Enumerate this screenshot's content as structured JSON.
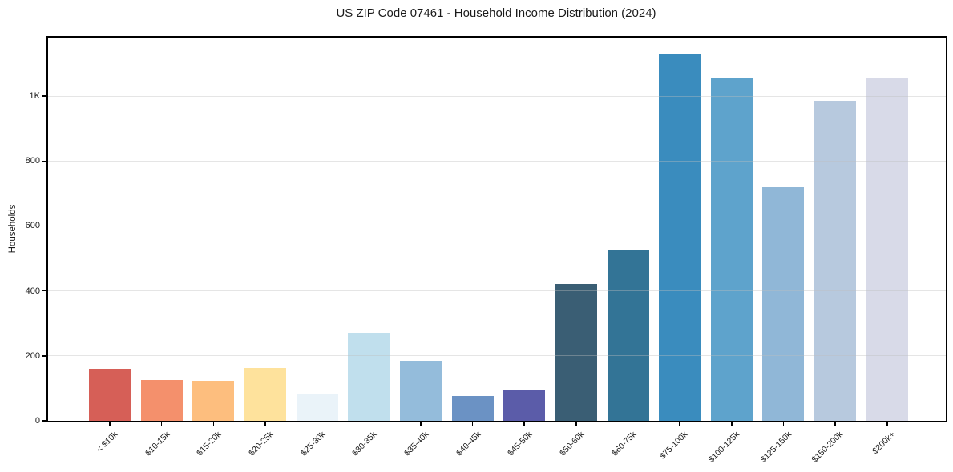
{
  "chart_data": {
    "type": "bar",
    "title": "US ZIP Code 07461 - Household Income Distribution (2024)",
    "xlabel": "",
    "ylabel": "Households",
    "categories": [
      "< $10k",
      "$10-15k",
      "$15-20k",
      "$20-25k",
      "$25-30k",
      "$30-35k",
      "$35-40k",
      "$40-45k",
      "$45-50k",
      "$50-60k",
      "$60-75k",
      "$75-100k",
      "$100-125k",
      "$125-150k",
      "$150-200k",
      "$200k+"
    ],
    "values": [
      160,
      125,
      124,
      162,
      84,
      272,
      185,
      76,
      93,
      422,
      526,
      1128,
      1054,
      720,
      985,
      1056
    ],
    "bar_colors": [
      "#d65f57",
      "#f4906c",
      "#fdbe7e",
      "#fee29c",
      "#eaf3f9",
      "#c0dfed",
      "#94bcdb",
      "#6b92c4",
      "#5b5ca9",
      "#3a5e74",
      "#337496",
      "#3a8cbe",
      "#5ea3cc",
      "#90b7d7",
      "#b7c9de",
      "#d8dae8"
    ],
    "y_ticks": [
      {
        "value": 0,
        "label": "0"
      },
      {
        "value": 200,
        "label": "200"
      },
      {
        "value": 400,
        "label": "400"
      },
      {
        "value": 600,
        "label": "600"
      },
      {
        "value": 800,
        "label": "800"
      },
      {
        "value": 1000,
        "label": "1K"
      }
    ],
    "ylim": [
      0,
      1180
    ],
    "grid": "horizontal",
    "grid_color": "rgba(190,190,190,0.4)",
    "axis_color": "#000000",
    "background": "#ffffff",
    "legend": "none"
  }
}
